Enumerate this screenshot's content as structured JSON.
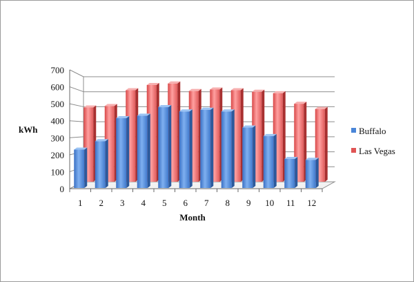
{
  "chart_data": {
    "type": "bar",
    "title": "",
    "xlabel": "Month",
    "ylabel": "kWh",
    "ylim": [
      0,
      700
    ],
    "yticks": [
      0,
      100,
      200,
      300,
      400,
      500,
      600,
      700
    ],
    "categories": [
      "1",
      "2",
      "3",
      "4",
      "5",
      "6",
      "7",
      "8",
      "9",
      "10",
      "11",
      "12"
    ],
    "grid": true,
    "legend_position": "right",
    "series": [
      {
        "name": "Buffalo",
        "color": "#4a86d8",
        "values": [
          230,
          280,
          415,
          430,
          480,
          455,
          465,
          455,
          360,
          310,
          175,
          170
        ]
      },
      {
        "name": "Las Vegas",
        "color": "#e05555",
        "values": [
          495,
          505,
          610,
          645,
          655,
          605,
          615,
          610,
          600,
          590,
          520,
          485
        ]
      }
    ]
  }
}
